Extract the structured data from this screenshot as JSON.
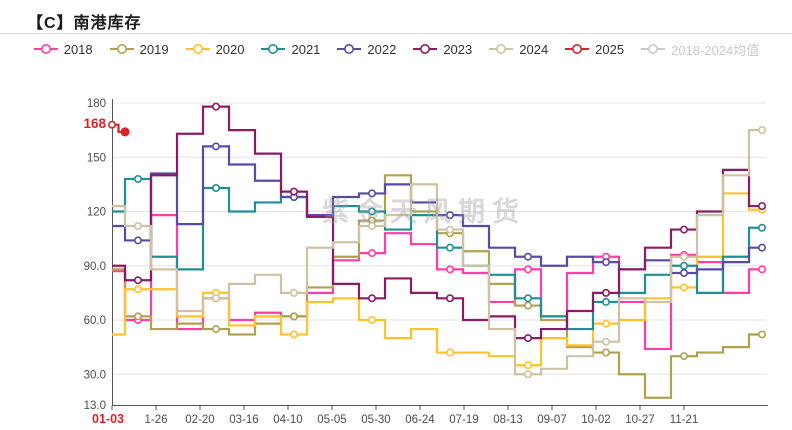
{
  "header": {
    "title": "【C】南港库存"
  },
  "watermark": "紫金天风期货",
  "axes": {
    "y_ticks": [
      "180",
      "150",
      "120",
      "90.0",
      "60.0",
      "30.0",
      "13.0"
    ],
    "y_tick_values": [
      180,
      150,
      120,
      90,
      60,
      30,
      13
    ],
    "x_ticks": [
      "01-03",
      "1-26",
      "02-20",
      "03-16",
      "04-10",
      "05-05",
      "05-30",
      "06-24",
      "07-19",
      "08-13",
      "09-07",
      "10-02",
      "10-27",
      "11-21"
    ],
    "x_highlight_index": 0,
    "highlight": {
      "y_label": "168",
      "x_label": "01-03"
    }
  },
  "chart_data": {
    "type": "line",
    "step": true,
    "title": "【C】南港库存",
    "legend_position": "top",
    "grid": true,
    "ylim": [
      13,
      180
    ],
    "x": [
      "01-03",
      "01-17",
      "01-31",
      "02-14",
      "02-28",
      "03-14",
      "03-28",
      "04-11",
      "04-25",
      "05-09",
      "05-23",
      "06-06",
      "06-20",
      "07-04",
      "07-18",
      "08-01",
      "08-15",
      "08-29",
      "09-12",
      "09-26",
      "10-10",
      "10-24",
      "11-07",
      "11-21",
      "12-05",
      "12-19"
    ],
    "series": [
      {
        "name": "2018",
        "color": "#ff3da6",
        "values": [
          87,
          60,
          118,
          55,
          72,
          60,
          64,
          62,
          75,
          93,
          97,
          108,
          102,
          88,
          86,
          70,
          88,
          62,
          86,
          95,
          70,
          44,
          96,
          92,
          75,
          88
        ]
      },
      {
        "name": "2019",
        "color": "#b0a14f",
        "values": [
          88,
          62,
          55,
          58,
          55,
          52,
          58,
          62,
          78,
          95,
          115,
          140,
          120,
          108,
          98,
          80,
          68,
          60,
          45,
          42,
          30,
          17,
          40,
          42,
          45,
          52
        ]
      },
      {
        "name": "2020",
        "color": "#ffc228",
        "values": [
          52,
          77,
          77,
          62,
          75,
          57,
          62,
          52,
          70,
          72,
          60,
          50,
          55,
          42,
          42,
          40,
          35,
          50,
          46,
          58,
          60,
          72,
          78,
          95,
          130,
          121
        ]
      },
      {
        "name": "2021",
        "color": "#1f8f96",
        "values": [
          120,
          138,
          95,
          88,
          133,
          120,
          125,
          128,
          118,
          123,
          120,
          110,
          118,
          100,
          90,
          85,
          72,
          62,
          55,
          70,
          75,
          85,
          90,
          75,
          95,
          111
        ]
      },
      {
        "name": "2022",
        "color": "#564ca8",
        "values": [
          112,
          104,
          141,
          113,
          156,
          146,
          137,
          128,
          118,
          128,
          130,
          135,
          125,
          118,
          112,
          100,
          95,
          90,
          95,
          92,
          88,
          93,
          86,
          88,
          92,
          100
        ]
      },
      {
        "name": "2023",
        "color": "#8c1a64",
        "values": [
          90,
          82,
          140,
          163,
          178,
          165,
          152,
          131,
          117,
          80,
          72,
          83,
          75,
          72,
          60,
          62,
          50,
          55,
          65,
          75,
          88,
          100,
          110,
          120,
          143,
          123
        ]
      },
      {
        "name": "2024",
        "color": "#cec2a2",
        "values": [
          123,
          112,
          88,
          65,
          72,
          80,
          85,
          75,
          100,
          103,
          112,
          118,
          135,
          110,
          90,
          55,
          30,
          33,
          40,
          48,
          72,
          70,
          95,
          118,
          140,
          165
        ]
      },
      {
        "name": "2025",
        "color": "#d9232a",
        "partial": true,
        "values": [
          168,
          164
        ]
      },
      {
        "name": "2018-2024均值",
        "color": "#d4d4d4",
        "disabled": true,
        "values": []
      }
    ]
  }
}
